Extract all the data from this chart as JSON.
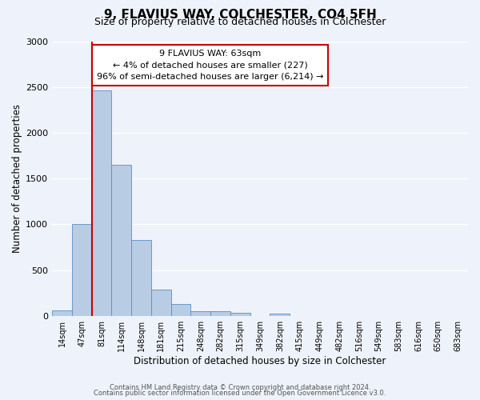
{
  "title": "9, FLAVIUS WAY, COLCHESTER, CO4 5FH",
  "subtitle": "Size of property relative to detached houses in Colchester",
  "xlabel": "Distribution of detached houses by size in Colchester",
  "ylabel": "Number of detached properties",
  "bin_labels": [
    "14sqm",
    "47sqm",
    "81sqm",
    "114sqm",
    "148sqm",
    "181sqm",
    "215sqm",
    "248sqm",
    "282sqm",
    "315sqm",
    "349sqm",
    "382sqm",
    "415sqm",
    "449sqm",
    "482sqm",
    "516sqm",
    "549sqm",
    "583sqm",
    "616sqm",
    "650sqm",
    "683sqm"
  ],
  "bar_heights": [
    55,
    1000,
    2460,
    1650,
    830,
    290,
    130,
    50,
    50,
    35,
    0,
    25,
    0,
    0,
    0,
    0,
    0,
    0,
    0,
    0,
    0
  ],
  "bar_color": "#b8cce4",
  "bar_edge_color": "#5a8fc2",
  "vline_color": "#cc0000",
  "ylim": [
    0,
    3000
  ],
  "yticks": [
    0,
    500,
    1000,
    1500,
    2000,
    2500,
    3000
  ],
  "annotation_title": "9 FLAVIUS WAY: 63sqm",
  "annotation_line1": "← 4% of detached houses are smaller (227)",
  "annotation_line2": "96% of semi-detached houses are larger (6,214) →",
  "annotation_box_color": "#ffffff",
  "annotation_box_edge_color": "#cc0000",
  "footnote1": "Contains HM Land Registry data © Crown copyright and database right 2024.",
  "footnote2": "Contains public sector information licensed under the Open Government Licence v3.0.",
  "background_color": "#eef2fa",
  "grid_color": "#ffffff",
  "title_fontsize": 11,
  "subtitle_fontsize": 9,
  "xlabel_fontsize": 8.5,
  "ylabel_fontsize": 8.5
}
